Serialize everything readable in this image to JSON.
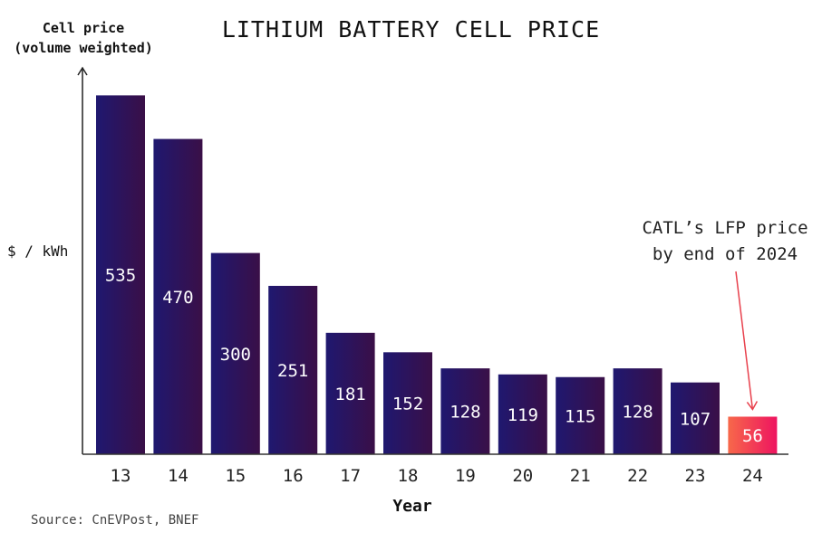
{
  "chart_data": {
    "type": "bar",
    "title": "LITHIUM BATTERY CELL PRICE",
    "ylabel_lines": [
      "Cell price",
      "(volume weighted)"
    ],
    "yunit": "$ / kWh",
    "xlabel": "Year",
    "categories": [
      "13",
      "14",
      "15",
      "16",
      "17",
      "18",
      "19",
      "20",
      "21",
      "22",
      "23",
      "24"
    ],
    "values": [
      535,
      470,
      300,
      251,
      181,
      152,
      128,
      119,
      115,
      128,
      107,
      56
    ],
    "highlight_index": 11,
    "annotation": [
      "CATL’s LFP price",
      "by end of 2024"
    ],
    "ylim": [
      0,
      576
    ],
    "grid": false,
    "colors": {
      "bar_start": "#1f1870",
      "bar_end": "#3a0f47",
      "highlight_start": "#f7684a",
      "highlight_end": "#ee1460",
      "arrow": "#e8414d"
    }
  },
  "source": "Source: CnEVPost, BNEF"
}
